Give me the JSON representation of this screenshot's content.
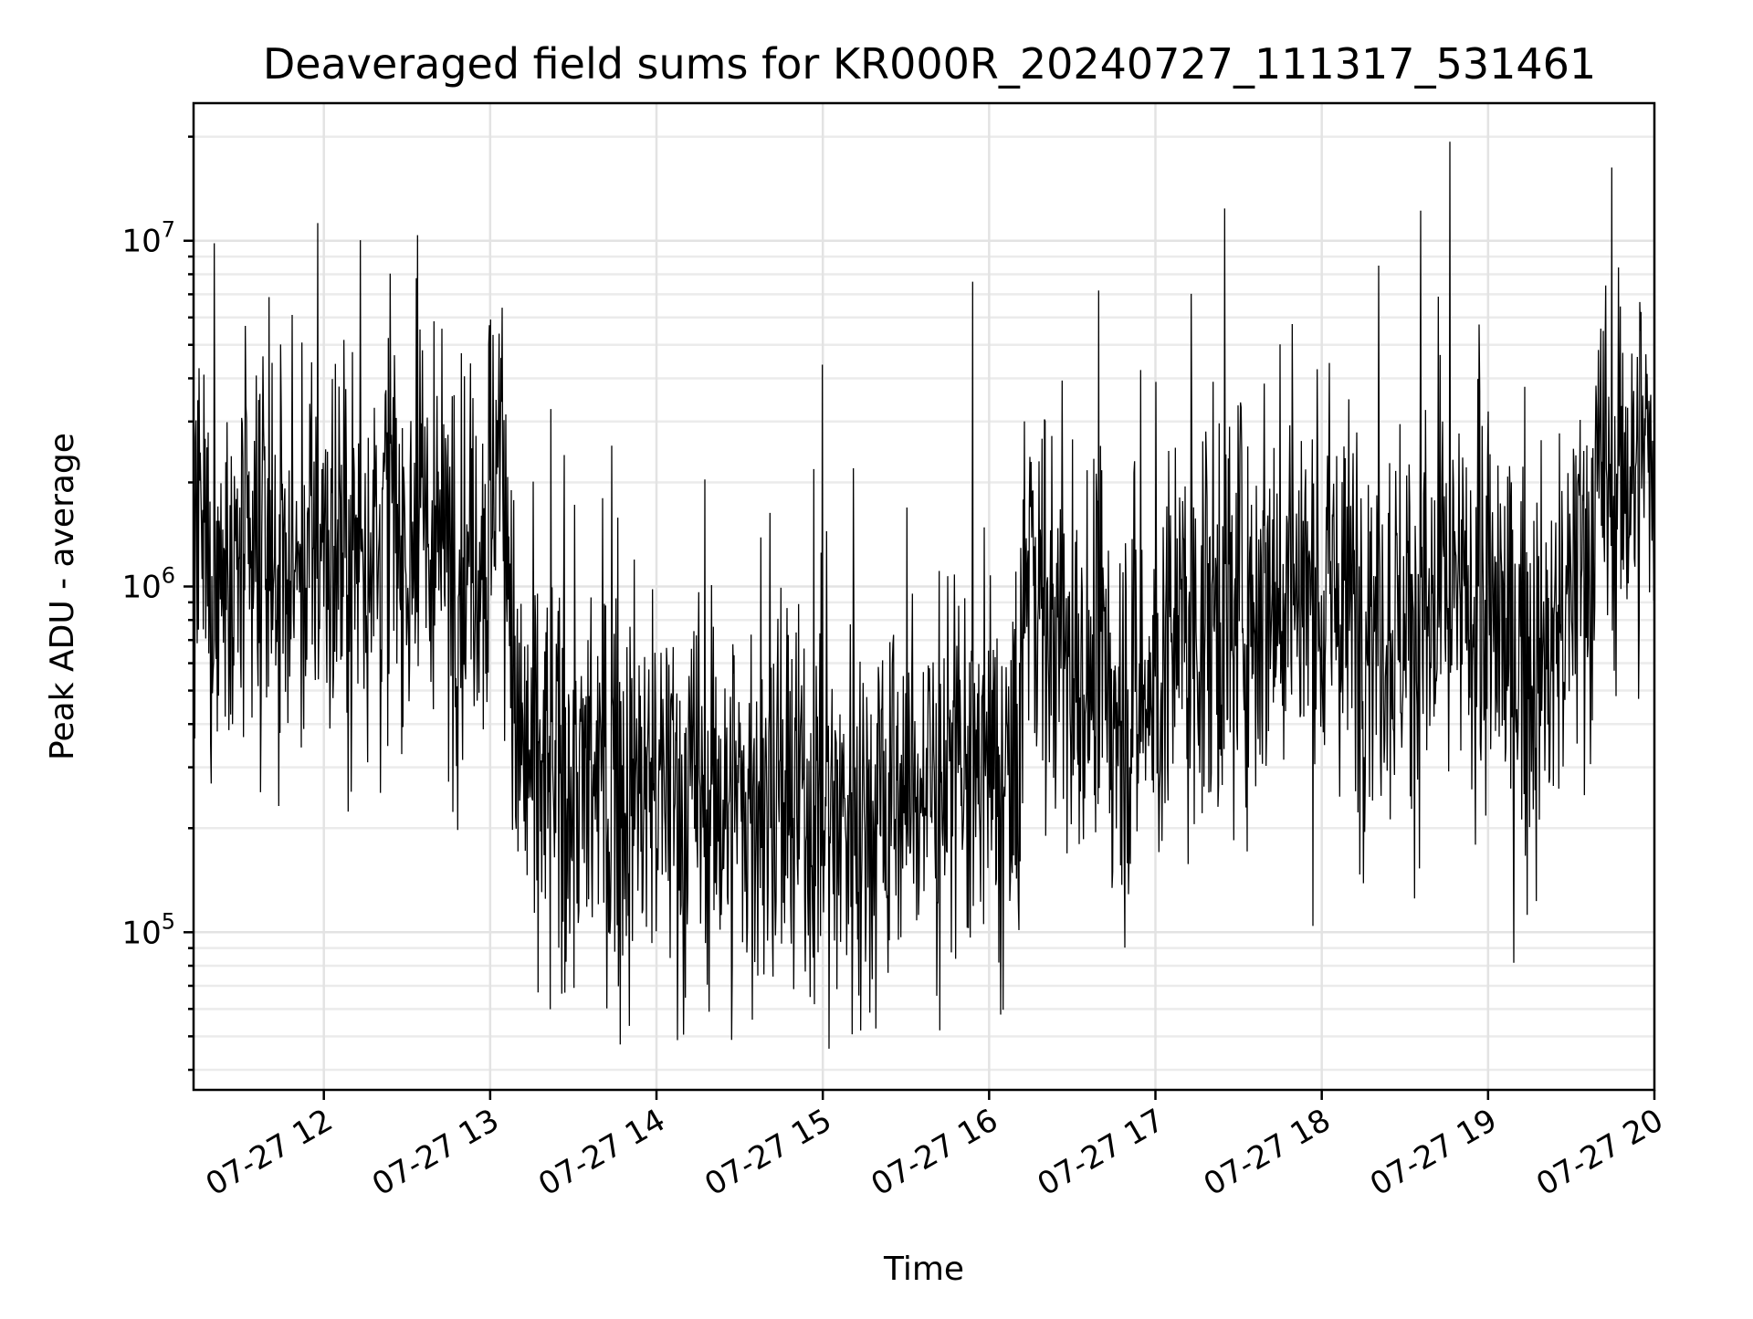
{
  "chart_data": {
    "type": "line",
    "title": "Deaveraged field sums for KR000R_20240727_111317_531461",
    "xlabel": "Time",
    "ylabel": "Peak ADU - average",
    "yscale": "log",
    "xlim": [
      "2024-07-27T11:13",
      "2024-07-27T20:00"
    ],
    "ylim": [
      35000,
      25000000
    ],
    "grid": true,
    "x_ticks": [
      {
        "t": "2024-07-27T12:00",
        "label": "07-27 12"
      },
      {
        "t": "2024-07-27T13:00",
        "label": "07-27 13"
      },
      {
        "t": "2024-07-27T14:00",
        "label": "07-27 14"
      },
      {
        "t": "2024-07-27T15:00",
        "label": "07-27 15"
      },
      {
        "t": "2024-07-27T16:00",
        "label": "07-27 16"
      },
      {
        "t": "2024-07-27T17:00",
        "label": "07-27 17"
      },
      {
        "t": "2024-07-27T18:00",
        "label": "07-27 18"
      },
      {
        "t": "2024-07-27T19:00",
        "label": "07-27 19"
      },
      {
        "t": "2024-07-27T20:00",
        "label": "07-27 20"
      }
    ],
    "y_ticks": [
      {
        "value": 100000,
        "base": "10",
        "exp": "5"
      },
      {
        "value": 1000000,
        "base": "10",
        "exp": "6"
      },
      {
        "value": 10000000,
        "base": "10",
        "exp": "7"
      }
    ],
    "series": [
      {
        "color": "#000000",
        "x": [
          "2024-07-27T11:13",
          "2024-07-27T11:20",
          "2024-07-27T11:30",
          "2024-07-27T11:40",
          "2024-07-27T11:50",
          "2024-07-27T12:00",
          "2024-07-27T12:10",
          "2024-07-27T12:20",
          "2024-07-27T12:30",
          "2024-07-27T12:40",
          "2024-07-27T12:50",
          "2024-07-27T13:00",
          "2024-07-27T13:03",
          "2024-07-27T13:10",
          "2024-07-27T13:20",
          "2024-07-27T13:30",
          "2024-07-27T13:40",
          "2024-07-27T13:50",
          "2024-07-27T14:00",
          "2024-07-27T14:10",
          "2024-07-27T14:20",
          "2024-07-27T14:30",
          "2024-07-27T14:40",
          "2024-07-27T14:50",
          "2024-07-27T15:00",
          "2024-07-27T15:10",
          "2024-07-27T15:20",
          "2024-07-27T15:30",
          "2024-07-27T15:40",
          "2024-07-27T15:50",
          "2024-07-27T16:00",
          "2024-07-27T16:10",
          "2024-07-27T16:15",
          "2024-07-27T16:20",
          "2024-07-27T16:30",
          "2024-07-27T16:40",
          "2024-07-27T16:50",
          "2024-07-27T17:00",
          "2024-07-27T17:10",
          "2024-07-27T17:20",
          "2024-07-27T17:30",
          "2024-07-27T17:40",
          "2024-07-27T17:50",
          "2024-07-27T18:00",
          "2024-07-27T18:10",
          "2024-07-27T18:20",
          "2024-07-27T18:30",
          "2024-07-27T18:40",
          "2024-07-27T18:50",
          "2024-07-27T19:00",
          "2024-07-27T19:10",
          "2024-07-27T19:20",
          "2024-07-27T19:30",
          "2024-07-27T19:40",
          "2024-07-27T19:50",
          "2024-07-27T20:00"
        ],
        "y": [
          1200000,
          1100000,
          1000000,
          1200000,
          1100000,
          1300000,
          1200000,
          1500000,
          1400000,
          1300000,
          1300000,
          1500000,
          3500000,
          330000,
          270000,
          260000,
          270000,
          250000,
          260000,
          240000,
          250000,
          230000,
          230000,
          220000,
          220000,
          220000,
          230000,
          260000,
          280000,
          280000,
          270000,
          260000,
          1500000,
          850000,
          550000,
          480000,
          460000,
          500000,
          700000,
          850000,
          900000,
          1000000,
          1000000,
          900000,
          900000,
          850000,
          800000,
          800000,
          850000,
          800000,
          650000,
          550000,
          900000,
          1800000,
          2200000,
          2400000
        ]
      }
    ]
  }
}
